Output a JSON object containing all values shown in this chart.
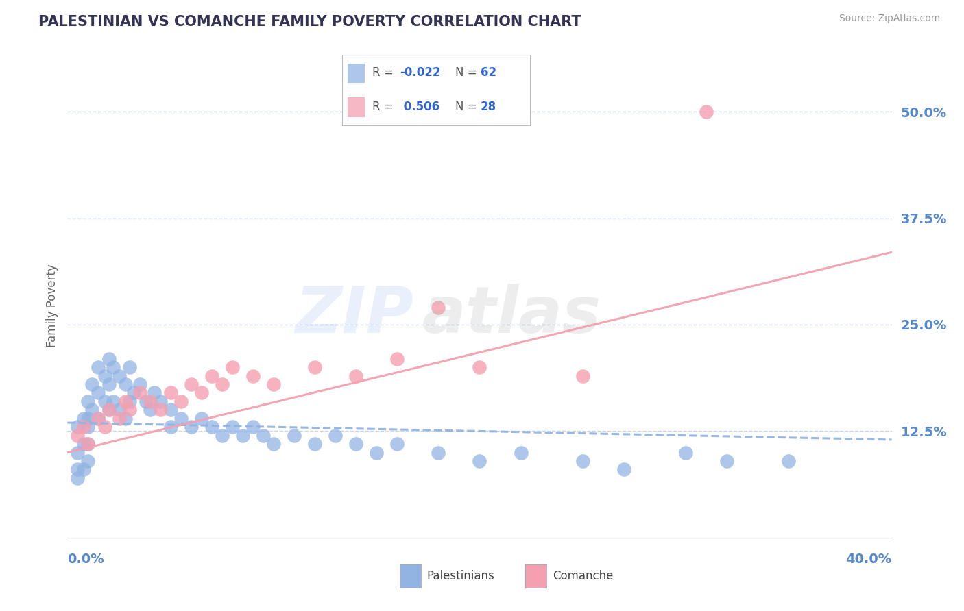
{
  "title": "PALESTINIAN VS COMANCHE FAMILY POVERTY CORRELATION CHART",
  "source": "Source: ZipAtlas.com",
  "ylabel": "Family Poverty",
  "ytick_labels": [
    "12.5%",
    "25.0%",
    "37.5%",
    "50.0%"
  ],
  "ytick_values": [
    0.125,
    0.25,
    0.375,
    0.5
  ],
  "xlim": [
    0.0,
    0.4
  ],
  "ylim": [
    0.0,
    0.545
  ],
  "palestinians_color": "#92b4e3",
  "comanche_color": "#f4a0b0",
  "legend_R_pal": "-0.022",
  "legend_N_pal": "62",
  "legend_R_com": "0.506",
  "legend_N_com": "28",
  "axis_label_color": "#5588cc",
  "background_color": "#ffffff",
  "grid_color": "#c8d4e8",
  "palestinians_x": [
    0.005,
    0.005,
    0.005,
    0.005,
    0.008,
    0.008,
    0.008,
    0.01,
    0.01,
    0.01,
    0.01,
    0.01,
    0.012,
    0.012,
    0.015,
    0.015,
    0.015,
    0.018,
    0.018,
    0.02,
    0.02,
    0.02,
    0.022,
    0.022,
    0.025,
    0.025,
    0.028,
    0.028,
    0.03,
    0.03,
    0.032,
    0.035,
    0.038,
    0.04,
    0.042,
    0.045,
    0.05,
    0.05,
    0.055,
    0.06,
    0.065,
    0.07,
    0.075,
    0.08,
    0.085,
    0.09,
    0.095,
    0.1,
    0.11,
    0.12,
    0.13,
    0.14,
    0.15,
    0.16,
    0.18,
    0.2,
    0.22,
    0.25,
    0.27,
    0.3,
    0.32,
    0.35
  ],
  "palestinians_y": [
    0.13,
    0.1,
    0.08,
    0.07,
    0.14,
    0.11,
    0.08,
    0.16,
    0.14,
    0.13,
    0.11,
    0.09,
    0.18,
    0.15,
    0.2,
    0.17,
    0.14,
    0.19,
    0.16,
    0.21,
    0.18,
    0.15,
    0.2,
    0.16,
    0.19,
    0.15,
    0.18,
    0.14,
    0.2,
    0.16,
    0.17,
    0.18,
    0.16,
    0.15,
    0.17,
    0.16,
    0.15,
    0.13,
    0.14,
    0.13,
    0.14,
    0.13,
    0.12,
    0.13,
    0.12,
    0.13,
    0.12,
    0.11,
    0.12,
    0.11,
    0.12,
    0.11,
    0.1,
    0.11,
    0.1,
    0.09,
    0.1,
    0.09,
    0.08,
    0.1,
    0.09,
    0.09
  ],
  "comanche_x": [
    0.005,
    0.008,
    0.01,
    0.015,
    0.018,
    0.02,
    0.025,
    0.028,
    0.03,
    0.035,
    0.04,
    0.045,
    0.05,
    0.055,
    0.06,
    0.065,
    0.07,
    0.075,
    0.08,
    0.09,
    0.1,
    0.12,
    0.14,
    0.16,
    0.18,
    0.2,
    0.25,
    0.31
  ],
  "comanche_y": [
    0.12,
    0.13,
    0.11,
    0.14,
    0.13,
    0.15,
    0.14,
    0.16,
    0.15,
    0.17,
    0.16,
    0.15,
    0.17,
    0.16,
    0.18,
    0.17,
    0.19,
    0.18,
    0.2,
    0.19,
    0.18,
    0.2,
    0.19,
    0.21,
    0.27,
    0.2,
    0.19,
    0.5
  ],
  "pal_line_x": [
    0.0,
    0.4
  ],
  "pal_line_y": [
    0.135,
    0.115
  ],
  "com_line_x": [
    0.0,
    0.4
  ],
  "com_line_y": [
    0.1,
    0.335
  ]
}
